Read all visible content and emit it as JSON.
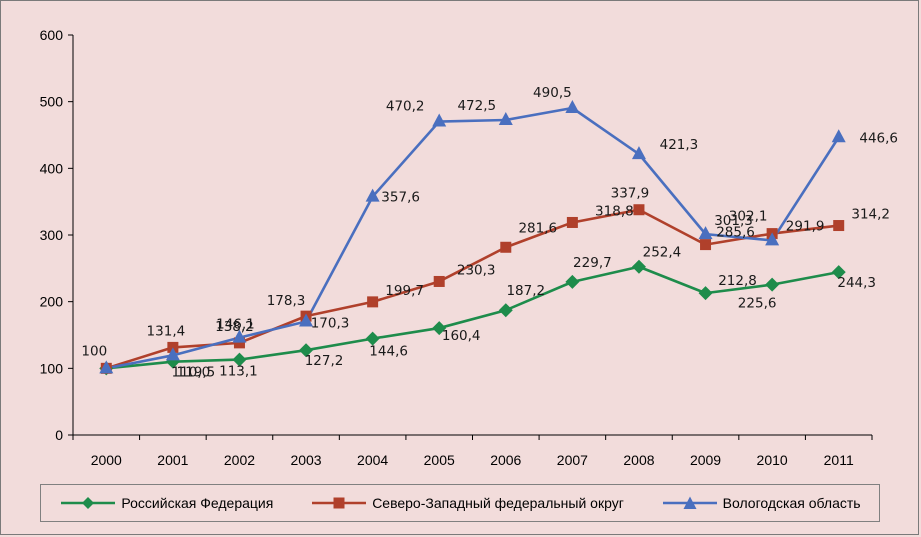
{
  "chart_data": {
    "type": "line",
    "title": "",
    "xlabel": "",
    "ylabel": "",
    "ylim": [
      0,
      600
    ],
    "yticks": [
      "0",
      "100",
      "200",
      "300",
      "400",
      "500",
      "600"
    ],
    "categories": [
      "2000",
      "2001",
      "2002",
      "2003",
      "2004",
      "2005",
      "2006",
      "2007",
      "2008",
      "2009",
      "2010",
      "2011"
    ],
    "grid": false,
    "legend_position": "bottom",
    "series": [
      {
        "name": "Российская Федерация",
        "color": "#1e8c4b",
        "marker": "diamond",
        "values": [
          100,
          110.0,
          113.1,
          127.2,
          144.6,
          160.4,
          187.2,
          229.7,
          252.4,
          212.8,
          225.6,
          244.3
        ],
        "labels": [
          "",
          "110,0",
          "113,1",
          "127,2",
          "144,6",
          "160,4",
          "187,2",
          "229,7",
          "252,4",
          "212,8",
          "225,6",
          "244,3"
        ]
      },
      {
        "name": "Северо-Западный федеральный округ",
        "color": "#b0402b",
        "marker": "square",
        "values": [
          100,
          131.4,
          138.2,
          178.3,
          199.7,
          230.3,
          281.6,
          318.8,
          337.9,
          285.6,
          302.1,
          314.2
        ],
        "labels": [
          "100",
          "131,4",
          "138,2",
          "178,3",
          "199,7",
          "230,3",
          "281,6",
          "318,8",
          "337,9",
          "285,6",
          "302,1",
          "314,2"
        ]
      },
      {
        "name": "Вологодская область",
        "color": "#4a6fbf",
        "marker": "triangle",
        "values": [
          100,
          119.5,
          146.1,
          170.3,
          357.6,
          470.2,
          472.5,
          490.5,
          421.3,
          301.3,
          291.9,
          446.6
        ],
        "labels": [
          "",
          "119,5",
          "146,1",
          "170,3",
          "357,6",
          "470,2",
          "472,5",
          "490,5",
          "421,3",
          "301,3",
          "291,9",
          "446,6"
        ]
      }
    ]
  }
}
